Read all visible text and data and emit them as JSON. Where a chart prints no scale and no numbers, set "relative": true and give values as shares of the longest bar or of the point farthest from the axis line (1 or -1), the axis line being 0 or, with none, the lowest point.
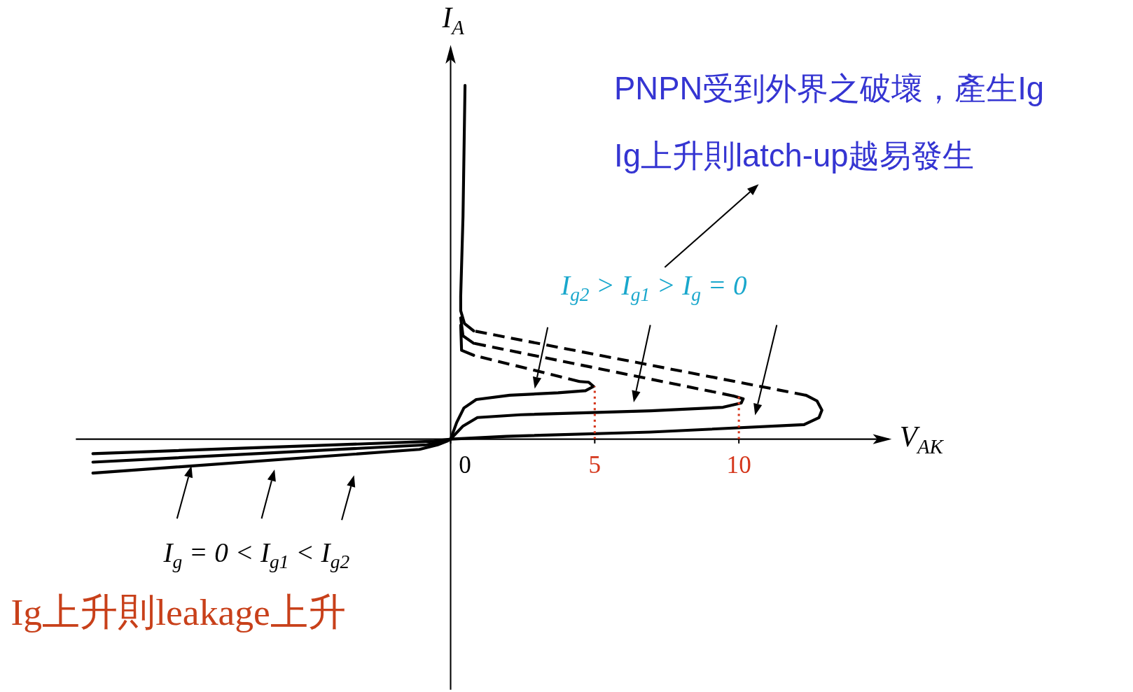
{
  "chart_data": {
    "type": "line",
    "relative": true,
    "marker": "none",
    "xlabel": "V$_{AK}$",
    "ylabel": "I$_{A}$",
    "xlim": [
      -13,
      15.2
    ],
    "xticks": [
      0,
      5,
      10
    ],
    "series": [
      {
        "color": "#000000",
        "line_style": "solid",
        "x": [
          -12.41,
          -0.58,
          0,
          1.93,
          6.94,
          12.26,
          12.78,
          12.88,
          12.71,
          12.33
        ],
        "values": [
          -0.041,
          -0.006,
          0,
          0.008,
          0.02,
          0.041,
          0.061,
          0.082,
          0.108,
          0.124
        ]
      },
      {
        "color": "#000000",
        "line_style": "solid",
        "x": [
          -12.41,
          -0.83,
          -0.2,
          0,
          0.43,
          0.93,
          2.43,
          6.94,
          9.45,
          10.08,
          10.15,
          9.82
        ],
        "values": [
          -0.065,
          -0.016,
          -0.006,
          0,
          0.037,
          0.061,
          0.069,
          0.08,
          0.09,
          0.102,
          0.114,
          0.122
        ]
      },
      {
        "color": "#000000",
        "line_style": "solid",
        "x": [
          -12.41,
          -1.08,
          -0.45,
          -0.13,
          0,
          0.21,
          0.46,
          0.89,
          2.05,
          3.73,
          4.68,
          4.96,
          4.79,
          4.47
        ],
        "values": [
          -0.096,
          -0.029,
          -0.016,
          -0.006,
          0,
          0.047,
          0.088,
          0.112,
          0.124,
          0.131,
          0.137,
          0.149,
          0.161,
          0.163
        ]
      },
      {
        "color": "#000000",
        "line_style": "dashed",
        "x": [
          12.33,
          0.8
        ],
        "values": [
          0.124,
          0.306
        ]
      },
      {
        "color": "#000000",
        "line_style": "dashed",
        "x": [
          9.82,
          0.8
        ],
        "values": [
          0.122,
          0.271
        ]
      },
      {
        "color": "#000000",
        "line_style": "dashed",
        "x": [
          4.47,
          0.8
        ],
        "values": [
          0.163,
          0.237
        ]
      },
      {
        "color": "#000000",
        "line_style": "solid",
        "x": [
          0.5,
          0.43,
          0.35,
          0.35,
          0.48,
          0.8
        ],
        "values": [
          1.0,
          0.629,
          0.404,
          0.363,
          0.327,
          0.306
        ]
      },
      {
        "color": "#000000",
        "line_style": "solid",
        "x": [
          0.35,
          0.43,
          0.8
        ],
        "values": [
          0.343,
          0.292,
          0.271
        ]
      },
      {
        "color": "#000000",
        "line_style": "solid",
        "x": [
          0.35,
          0.38,
          0.8
        ],
        "values": [
          0.322,
          0.251,
          0.237
        ]
      },
      {
        "color": "#d5361b",
        "line_style": "dotted",
        "x": [
          5,
          5
        ],
        "values": [
          0,
          0.149
        ]
      },
      {
        "color": "#d5361b",
        "line_style": "dotted",
        "x": [
          10,
          10
        ],
        "values": [
          0,
          0.122
        ]
      }
    ],
    "annotations": [
      "PNPN受到外界之破壞，產生Ig",
      "Ig上升則latch-up越易發生",
      "I$_{g2}$ > I$_{g1}$ > I$_{g}$ = 0",
      "I$_{g}$ = 0 < I$_{g1}$ < I$_{g2}$",
      "Ig上升則leakage上升"
    ]
  }
}
